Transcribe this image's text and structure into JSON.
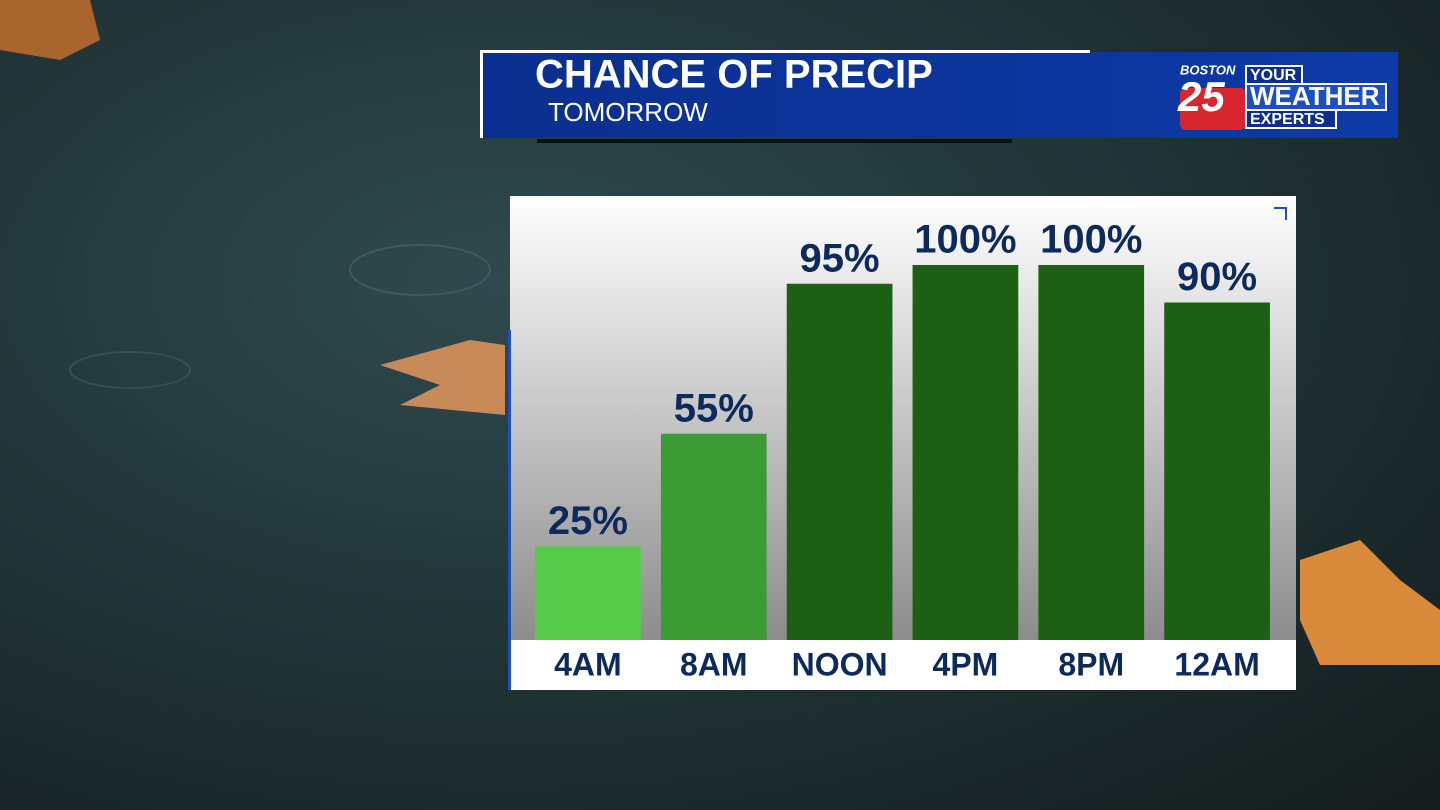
{
  "chart_data": {
    "type": "bar",
    "title": "CHANCE OF PRECIP",
    "subtitle": "TOMORROW",
    "categories": [
      "4AM",
      "8AM",
      "NOON",
      "4PM",
      "8PM",
      "12AM"
    ],
    "values": [
      25,
      55,
      95,
      100,
      100,
      90
    ],
    "value_labels": [
      "25%",
      "55%",
      "95%",
      "100%",
      "100%",
      "90%"
    ],
    "colors": [
      "#56cc4a",
      "#3b9c35",
      "#1d5f14",
      "#1d5f14",
      "#1d5f14",
      "#1d5f14"
    ],
    "ylim": [
      0,
      100
    ]
  },
  "branding": {
    "city": "BOSTON",
    "channel": "25",
    "line1": "YOUR",
    "line2": "WEATHER",
    "line3": "EXPERTS"
  }
}
